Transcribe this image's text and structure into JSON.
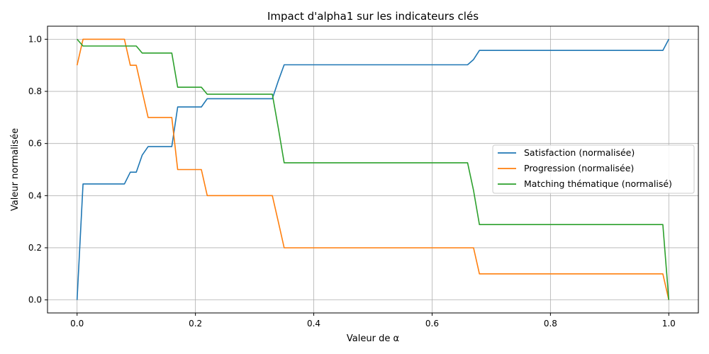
{
  "chart_data": {
    "type": "line",
    "title": "Impact d'alpha1 sur les indicateurs clés",
    "xlabel": "Valeur de α",
    "ylabel": "Valeur normalisée",
    "xlim": [
      -0.05,
      1.05
    ],
    "ylim": [
      -0.05,
      1.05
    ],
    "xticks": [
      0.0,
      0.2,
      0.4,
      0.6,
      0.8,
      1.0
    ],
    "xtick_labels": [
      "0.0",
      "0.2",
      "0.4",
      "0.6",
      "0.8",
      "1.0"
    ],
    "yticks": [
      0.0,
      0.2,
      0.4,
      0.6,
      0.8,
      1.0
    ],
    "ytick_labels": [
      "0.0",
      "0.2",
      "0.4",
      "0.6",
      "0.8",
      "1.0"
    ],
    "grid": true,
    "legend_position": "center-right",
    "series": [
      {
        "name": "Satisfaction (normalisée)",
        "color": "#1f77b4",
        "x": [
          0.0,
          0.01,
          0.02,
          0.03,
          0.04,
          0.05,
          0.06,
          0.07,
          0.08,
          0.09,
          0.1,
          0.11,
          0.12,
          0.13,
          0.14,
          0.15,
          0.16,
          0.17,
          0.18,
          0.19,
          0.2,
          0.21,
          0.22,
          0.23,
          0.32,
          0.33,
          0.34,
          0.35,
          0.65,
          0.66,
          0.67,
          0.68,
          0.98,
          0.99,
          1.0
        ],
        "y": [
          0.0,
          0.445,
          0.445,
          0.445,
          0.445,
          0.445,
          0.445,
          0.445,
          0.445,
          0.49,
          0.49,
          0.555,
          0.588,
          0.588,
          0.588,
          0.588,
          0.588,
          0.74,
          0.74,
          0.74,
          0.74,
          0.74,
          0.772,
          0.772,
          0.772,
          0.772,
          0.84,
          0.902,
          0.902,
          0.902,
          0.922,
          0.957,
          0.957,
          0.957,
          1.0
        ]
      },
      {
        "name": "Progression (normalisée)",
        "color": "#ff7f0e",
        "x": [
          0.0,
          0.01,
          0.02,
          0.03,
          0.04,
          0.05,
          0.06,
          0.07,
          0.08,
          0.09,
          0.1,
          0.11,
          0.12,
          0.13,
          0.14,
          0.15,
          0.16,
          0.17,
          0.18,
          0.19,
          0.2,
          0.21,
          0.22,
          0.23,
          0.32,
          0.33,
          0.34,
          0.35,
          0.65,
          0.66,
          0.67,
          0.68,
          0.98,
          0.99,
          1.0
        ],
        "y": [
          0.9,
          1.0,
          1.0,
          1.0,
          1.0,
          1.0,
          1.0,
          1.0,
          1.0,
          0.9,
          0.9,
          0.8,
          0.7,
          0.7,
          0.7,
          0.7,
          0.7,
          0.5,
          0.5,
          0.5,
          0.5,
          0.5,
          0.4,
          0.4,
          0.4,
          0.4,
          0.3,
          0.2,
          0.2,
          0.2,
          0.2,
          0.1,
          0.1,
          0.1,
          0.0
        ]
      },
      {
        "name": "Matching thématique (normalisé)",
        "color": "#2ca02c",
        "x": [
          0.0,
          0.01,
          0.02,
          0.03,
          0.04,
          0.05,
          0.06,
          0.07,
          0.08,
          0.09,
          0.1,
          0.11,
          0.12,
          0.13,
          0.14,
          0.15,
          0.16,
          0.17,
          0.18,
          0.19,
          0.2,
          0.21,
          0.22,
          0.23,
          0.32,
          0.33,
          0.34,
          0.35,
          0.65,
          0.66,
          0.67,
          0.68,
          0.98,
          0.99,
          1.0
        ],
        "y": [
          1.0,
          0.974,
          0.974,
          0.974,
          0.974,
          0.974,
          0.974,
          0.974,
          0.974,
          0.974,
          0.974,
          0.947,
          0.947,
          0.947,
          0.947,
          0.947,
          0.947,
          0.816,
          0.816,
          0.816,
          0.816,
          0.816,
          0.789,
          0.789,
          0.789,
          0.789,
          0.66,
          0.526,
          0.526,
          0.526,
          0.42,
          0.289,
          0.289,
          0.289,
          0.0
        ]
      }
    ]
  }
}
